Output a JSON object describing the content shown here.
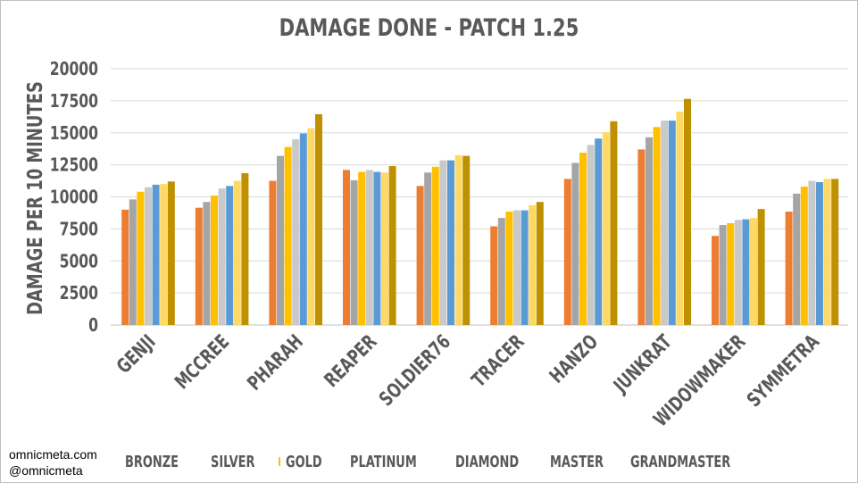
{
  "credits": {
    "site": "omnicmeta.com",
    "handle": "@omnicmeta"
  },
  "chart_data": {
    "type": "bar",
    "title": "DAMAGE DONE - PATCH 1.25",
    "xlabel": "",
    "ylabel": "DAMAGE PER 10 MINUTES",
    "ylim": [
      0,
      20000
    ],
    "yticks": [
      0,
      2500,
      5000,
      7500,
      10000,
      12500,
      15000,
      17500,
      20000
    ],
    "grid": true,
    "legend_position": "bottom",
    "categories": [
      "GENJI",
      "MCCREE",
      "PHARAH",
      "REAPER",
      "SOLDIER76",
      "TRACER",
      "HANZO",
      "JUNKRAT",
      "WIDOWMAKER",
      "SYMMETRA"
    ],
    "series": [
      {
        "name": "BRONZE",
        "color": "#ed7d31",
        "values": [
          9000,
          9150,
          11250,
          12100,
          10850,
          7700,
          11400,
          13700,
          6950,
          8850
        ]
      },
      {
        "name": "SILVER",
        "color": "#a5a5a5",
        "values": [
          9800,
          9600,
          13200,
          11300,
          11900,
          8350,
          12650,
          14650,
          7800,
          10250
        ]
      },
      {
        "name": "GOLD",
        "color": "#ffc000",
        "values": [
          10400,
          10100,
          13900,
          11950,
          12350,
          8850,
          13450,
          15450,
          7950,
          10800
        ]
      },
      {
        "name": "PLATINUM",
        "color": "#c9c9c9",
        "values": [
          10750,
          10650,
          14500,
          12100,
          12850,
          8950,
          14050,
          15950,
          8200,
          11250
        ]
      },
      {
        "name": "DIAMOND",
        "color": "#5b9bd5",
        "values": [
          10950,
          10850,
          14950,
          11950,
          12850,
          8950,
          14550,
          15950,
          8250,
          11150
        ]
      },
      {
        "name": "MASTER",
        "color": "#ffd966",
        "values": [
          11000,
          11250,
          15350,
          11900,
          13250,
          9350,
          15050,
          16650,
          8350,
          11400
        ]
      },
      {
        "name": "GRANDMASTER",
        "color": "#bf9000",
        "values": [
          11200,
          11850,
          16450,
          12400,
          13200,
          9600,
          15900,
          17650,
          9050,
          11400
        ]
      }
    ]
  }
}
